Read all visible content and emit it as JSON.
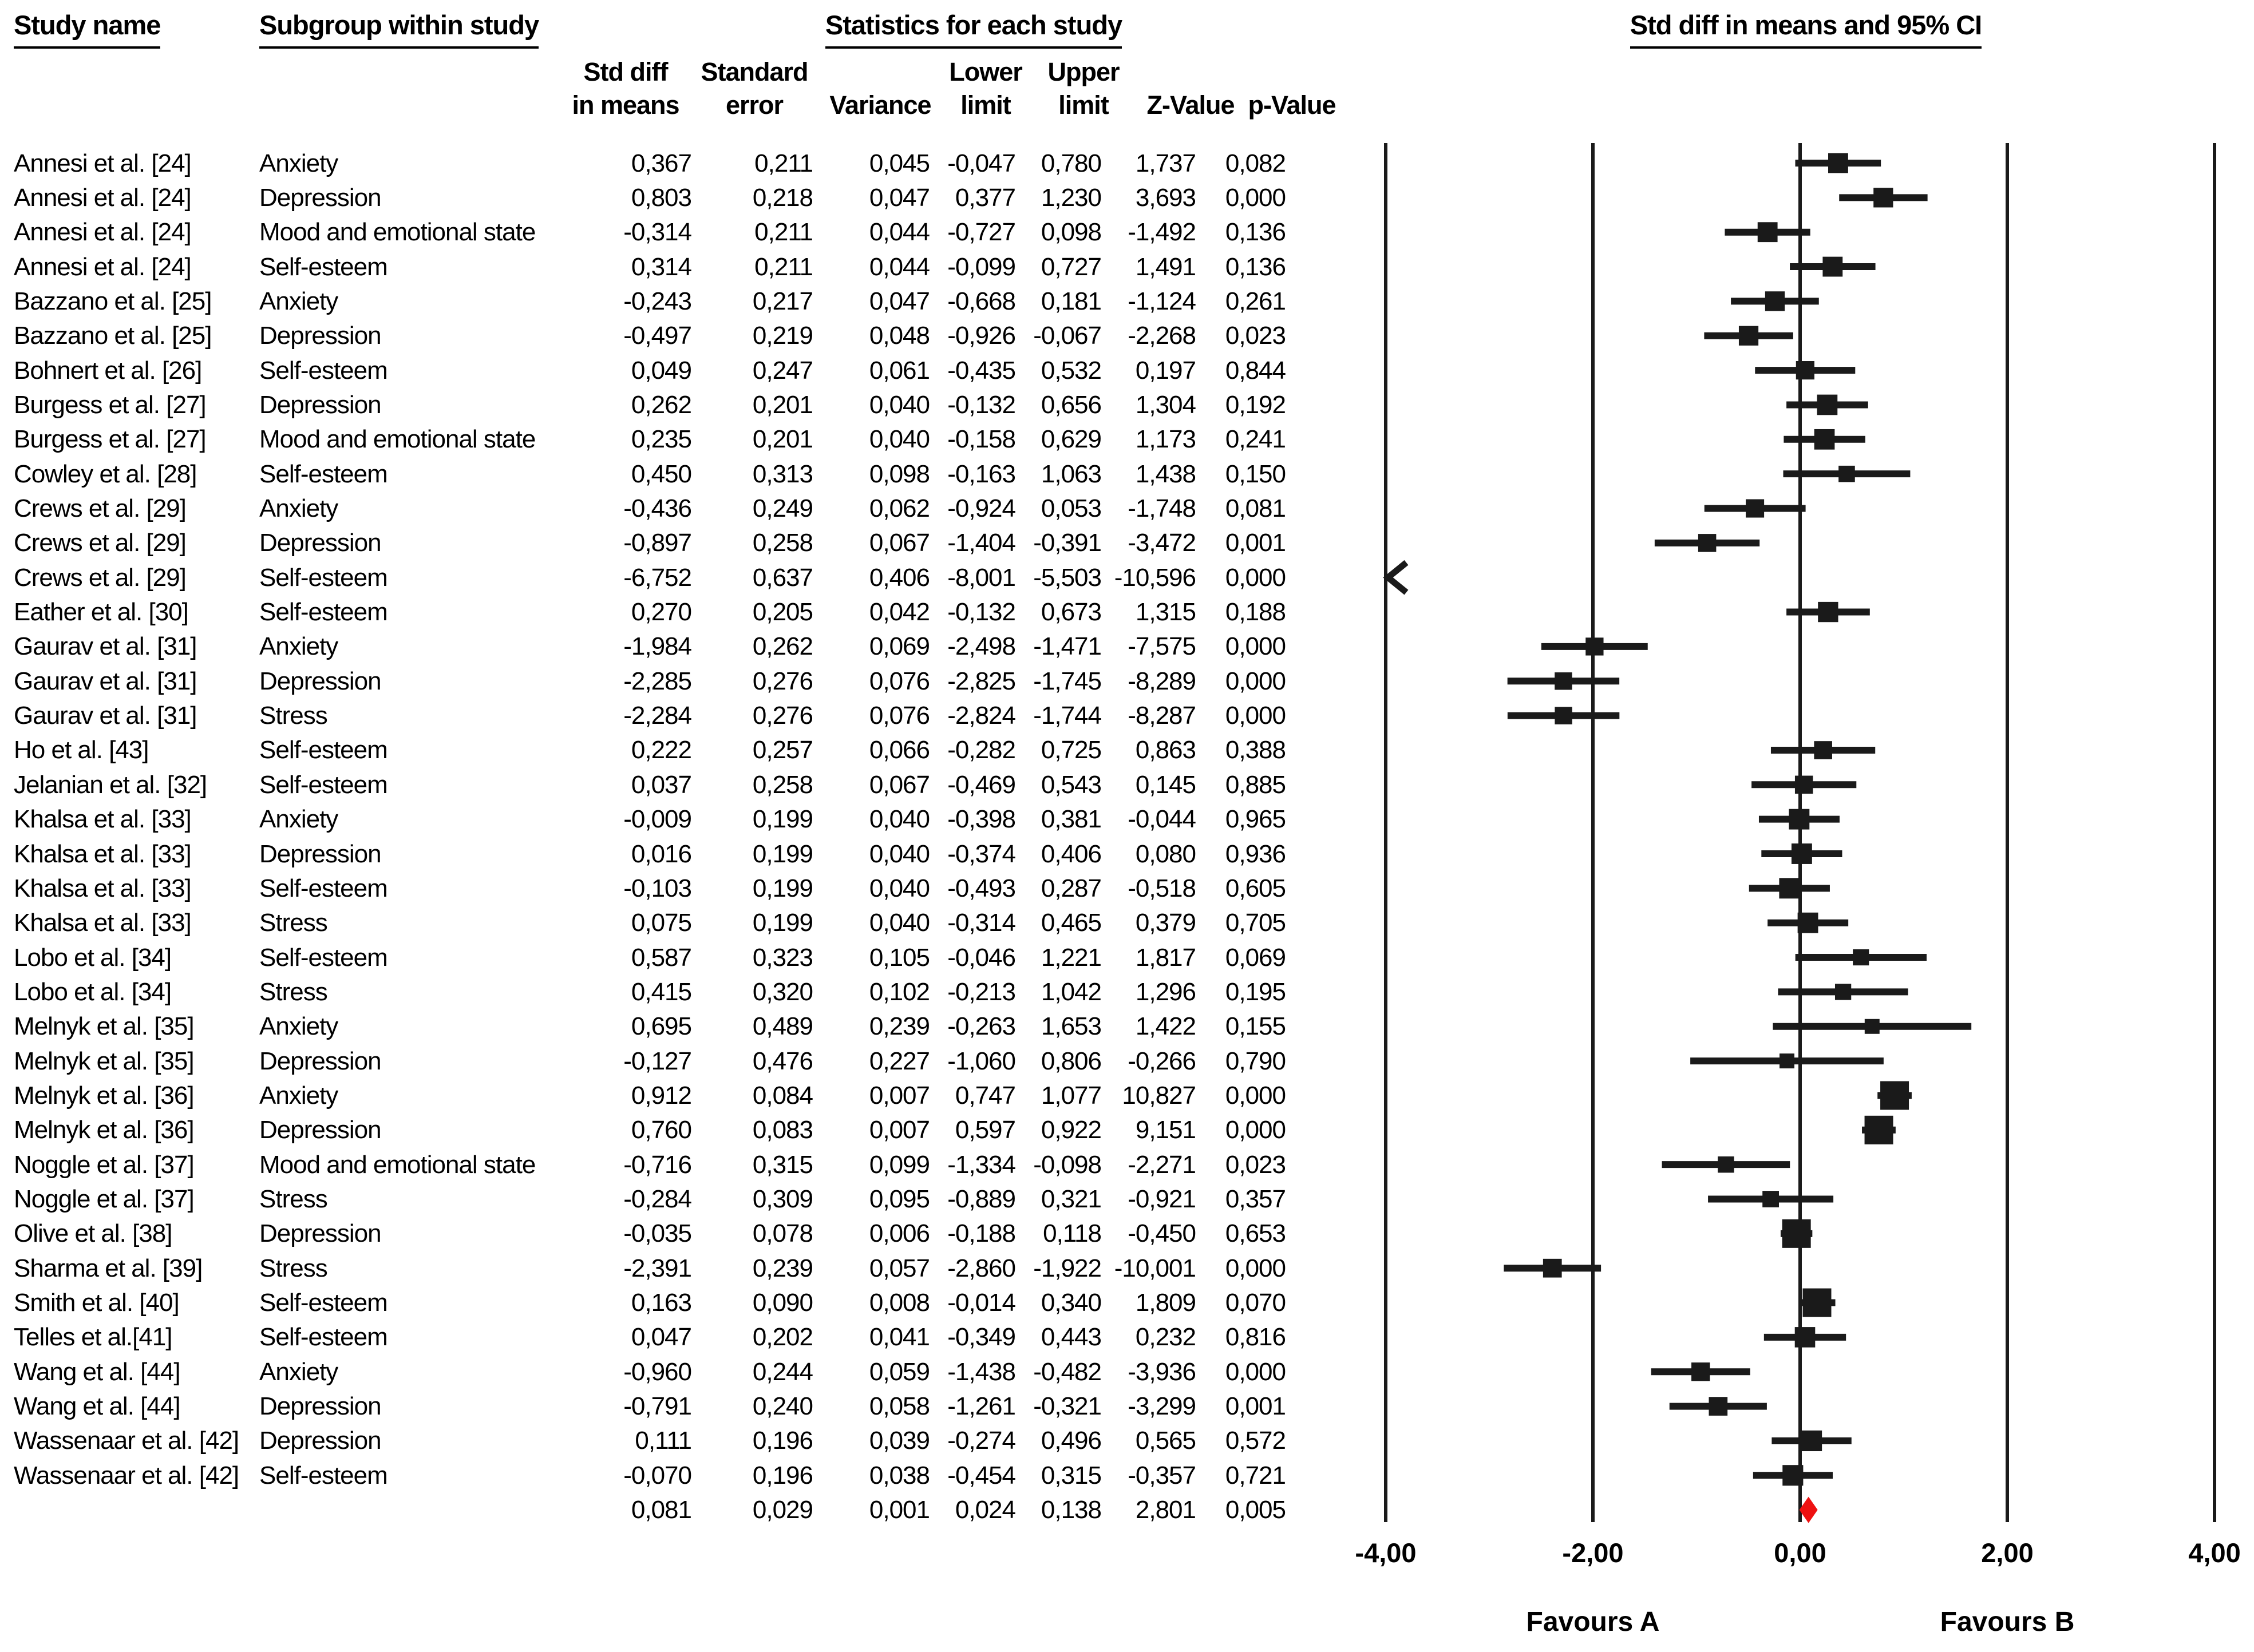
{
  "headers": {
    "study_name": "Study name",
    "subgroup": "Subgroup within study",
    "statistics": "Statistics for each study",
    "plot": "Std diff in means and 95% CI"
  },
  "stat_headers": {
    "line1": [
      "Std diff",
      "Standard",
      "Lower",
      "Upper"
    ],
    "line2": [
      "in means",
      "error",
      "Variance",
      "limit",
      "limit",
      "Z-Value",
      "p-Value"
    ]
  },
  "chart_data": {
    "type": "forest",
    "effect_measure": "Std diff in means and 95% CI",
    "xlim": [
      -4,
      4
    ],
    "x_ticks": [
      {
        "v": -4,
        "label": "-4,00"
      },
      {
        "v": -2,
        "label": "-2,00"
      },
      {
        "v": 0,
        "label": "0,00"
      },
      {
        "v": 2,
        "label": "2,00"
      },
      {
        "v": 4,
        "label": "4,00"
      }
    ],
    "favours_left": "Favours A",
    "favours_right": "Favours B",
    "marker_color": "#1a1a1a",
    "summary_color": "#ee1111",
    "rows": [
      {
        "study": "Annesi et al. [24]",
        "subgroup": "Anxiety",
        "cells": [
          "0,367",
          "0,211",
          "0,045",
          "-0,047",
          "0,780",
          "1,737",
          "0,082"
        ]
      },
      {
        "study": "Annesi et al. [24]",
        "subgroup": "Depression",
        "cells": [
          "0,803",
          "0,218",
          "0,047",
          "0,377",
          "1,230",
          "3,693",
          "0,000"
        ]
      },
      {
        "study": "Annesi et al. [24]",
        "subgroup": "Mood and emotional state",
        "cells": [
          "-0,314",
          "0,211",
          "0,044",
          "-0,727",
          "0,098",
          "-1,492",
          "0,136"
        ]
      },
      {
        "study": "Annesi et al. [24]",
        "subgroup": "Self-esteem",
        "cells": [
          "0,314",
          "0,211",
          "0,044",
          "-0,099",
          "0,727",
          "1,491",
          "0,136"
        ]
      },
      {
        "study": "Bazzano et al. [25]",
        "subgroup": "Anxiety",
        "cells": [
          "-0,243",
          "0,217",
          "0,047",
          "-0,668",
          "0,181",
          "-1,124",
          "0,261"
        ]
      },
      {
        "study": "Bazzano et al. [25]",
        "subgroup": "Depression",
        "cells": [
          "-0,497",
          "0,219",
          "0,048",
          "-0,926",
          "-0,067",
          "-2,268",
          "0,023"
        ]
      },
      {
        "study": "Bohnert et al. [26]",
        "subgroup": "Self-esteem",
        "cells": [
          "0,049",
          "0,247",
          "0,061",
          "-0,435",
          "0,532",
          "0,197",
          "0,844"
        ]
      },
      {
        "study": "Burgess et al. [27]",
        "subgroup": "Depression",
        "cells": [
          "0,262",
          "0,201",
          "0,040",
          "-0,132",
          "0,656",
          "1,304",
          "0,192"
        ]
      },
      {
        "study": "Burgess et al. [27]",
        "subgroup": "Mood and emotional state",
        "cells": [
          "0,235",
          "0,201",
          "0,040",
          "-0,158",
          "0,629",
          "1,173",
          "0,241"
        ]
      },
      {
        "study": "Cowley et al. [28]",
        "subgroup": "Self-esteem",
        "cells": [
          "0,450",
          "0,313",
          "0,098",
          "-0,163",
          "1,063",
          "1,438",
          "0,150"
        ]
      },
      {
        "study": "Crews et al. [29]",
        "subgroup": "Anxiety",
        "cells": [
          "-0,436",
          "0,249",
          "0,062",
          "-0,924",
          "0,053",
          "-1,748",
          "0,081"
        ]
      },
      {
        "study": "Crews et al. [29]",
        "subgroup": "Depression",
        "cells": [
          "-0,897",
          "0,258",
          "0,067",
          "-1,404",
          "-0,391",
          "-3,472",
          "0,001"
        ]
      },
      {
        "study": "Crews et al. [29]",
        "subgroup": "Self-esteem",
        "cells": [
          "-6,752",
          "0,637",
          "0,406",
          "-8,001",
          "-5,503",
          "-10,596",
          "0,000"
        ]
      },
      {
        "study": "Eather et al. [30]",
        "subgroup": "Self-esteem",
        "cells": [
          "0,270",
          "0,205",
          "0,042",
          "-0,132",
          "0,673",
          "1,315",
          "0,188"
        ]
      },
      {
        "study": "Gaurav et al. [31]",
        "subgroup": "Anxiety",
        "cells": [
          "-1,984",
          "0,262",
          "0,069",
          "-2,498",
          "-1,471",
          "-7,575",
          "0,000"
        ]
      },
      {
        "study": "Gaurav et al. [31]",
        "subgroup": "Depression",
        "cells": [
          "-2,285",
          "0,276",
          "0,076",
          "-2,825",
          "-1,745",
          "-8,289",
          "0,000"
        ]
      },
      {
        "study": "Gaurav et al. [31]",
        "subgroup": "Stress",
        "cells": [
          "-2,284",
          "0,276",
          "0,076",
          "-2,824",
          "-1,744",
          "-8,287",
          "0,000"
        ]
      },
      {
        "study": "Ho et al. [43]",
        "subgroup": "Self-esteem",
        "cells": [
          "0,222",
          "0,257",
          "0,066",
          "-0,282",
          "0,725",
          "0,863",
          "0,388"
        ]
      },
      {
        "study": "Jelanian et al. [32]",
        "subgroup": "Self-esteem",
        "cells": [
          "0,037",
          "0,258",
          "0,067",
          "-0,469",
          "0,543",
          "0,145",
          "0,885"
        ]
      },
      {
        "study": "Khalsa et al. [33]",
        "subgroup": "Anxiety",
        "cells": [
          "-0,009",
          "0,199",
          "0,040",
          "-0,398",
          "0,381",
          "-0,044",
          "0,965"
        ]
      },
      {
        "study": "Khalsa et al. [33]",
        "subgroup": "Depression",
        "cells": [
          "0,016",
          "0,199",
          "0,040",
          "-0,374",
          "0,406",
          "0,080",
          "0,936"
        ]
      },
      {
        "study": "Khalsa et al. [33]",
        "subgroup": "Self-esteem",
        "cells": [
          "-0,103",
          "0,199",
          "0,040",
          "-0,493",
          "0,287",
          "-0,518",
          "0,605"
        ]
      },
      {
        "study": "Khalsa et al. [33]",
        "subgroup": "Stress",
        "cells": [
          "0,075",
          "0,199",
          "0,040",
          "-0,314",
          "0,465",
          "0,379",
          "0,705"
        ]
      },
      {
        "study": "Lobo et al. [34]",
        "subgroup": "Self-esteem",
        "cells": [
          "0,587",
          "0,323",
          "0,105",
          "-0,046",
          "1,221",
          "1,817",
          "0,069"
        ]
      },
      {
        "study": "Lobo et al. [34]",
        "subgroup": "Stress",
        "cells": [
          "0,415",
          "0,320",
          "0,102",
          "-0,213",
          "1,042",
          "1,296",
          "0,195"
        ]
      },
      {
        "study": "Melnyk et al. [35]",
        "subgroup": "Anxiety",
        "cells": [
          "0,695",
          "0,489",
          "0,239",
          "-0,263",
          "1,653",
          "1,422",
          "0,155"
        ]
      },
      {
        "study": "Melnyk et al. [35]",
        "subgroup": "Depression",
        "cells": [
          "-0,127",
          "0,476",
          "0,227",
          "-1,060",
          "0,806",
          "-0,266",
          "0,790"
        ]
      },
      {
        "study": "Melnyk et al. [36]",
        "subgroup": "Anxiety",
        "cells": [
          "0,912",
          "0,084",
          "0,007",
          "0,747",
          "1,077",
          "10,827",
          "0,000"
        ]
      },
      {
        "study": "Melnyk et al. [36]",
        "subgroup": "Depression",
        "cells": [
          "0,760",
          "0,083",
          "0,007",
          "0,597",
          "0,922",
          "9,151",
          "0,000"
        ]
      },
      {
        "study": "Noggle et al. [37]",
        "subgroup": "Mood and emotional state",
        "cells": [
          "-0,716",
          "0,315",
          "0,099",
          "-1,334",
          "-0,098",
          "-2,271",
          "0,023"
        ]
      },
      {
        "study": "Noggle et al. [37]",
        "subgroup": "Stress",
        "cells": [
          "-0,284",
          "0,309",
          "0,095",
          "-0,889",
          "0,321",
          "-0,921",
          "0,357"
        ]
      },
      {
        "study": "Olive et al. [38]",
        "subgroup": "Depression",
        "cells": [
          "-0,035",
          "0,078",
          "0,006",
          "-0,188",
          "0,118",
          "-0,450",
          "0,653"
        ]
      },
      {
        "study": "Sharma et al. [39]",
        "subgroup": "Stress",
        "cells": [
          "-2,391",
          "0,239",
          "0,057",
          "-2,860",
          "-1,922",
          "-10,001",
          "0,000"
        ]
      },
      {
        "study": "Smith et al. [40]",
        "subgroup": "Self-esteem",
        "cells": [
          "0,163",
          "0,090",
          "0,008",
          "-0,014",
          "0,340",
          "1,809",
          "0,070"
        ]
      },
      {
        "study": "Telles et al.[41]",
        "subgroup": "Self-esteem",
        "cells": [
          "0,047",
          "0,202",
          "0,041",
          "-0,349",
          "0,443",
          "0,232",
          "0,816"
        ]
      },
      {
        "study": "Wang et al. [44]",
        "subgroup": "Anxiety",
        "cells": [
          "-0,960",
          "0,244",
          "0,059",
          "-1,438",
          "-0,482",
          "-3,936",
          "0,000"
        ]
      },
      {
        "study": "Wang et al. [44]",
        "subgroup": "Depression",
        "cells": [
          "-0,791",
          "0,240",
          "0,058",
          "-1,261",
          "-0,321",
          "-3,299",
          "0,001"
        ]
      },
      {
        "study": "Wassenaar et al. [42]",
        "subgroup": "Depression",
        "cells": [
          "0,111",
          "0,196",
          "0,039",
          "-0,274",
          "0,496",
          "0,565",
          "0,572"
        ]
      },
      {
        "study": "Wassenaar et al. [42]",
        "subgroup": "Self-esteem",
        "cells": [
          "-0,070",
          "0,196",
          "0,038",
          "-0,454",
          "0,315",
          "-0,357",
          "0,721"
        ]
      },
      {
        "study": "",
        "subgroup": "",
        "summary": true,
        "cells": [
          "0,081",
          "0,029",
          "0,001",
          "0,024",
          "0,138",
          "2,801",
          "0,005"
        ]
      }
    ]
  }
}
